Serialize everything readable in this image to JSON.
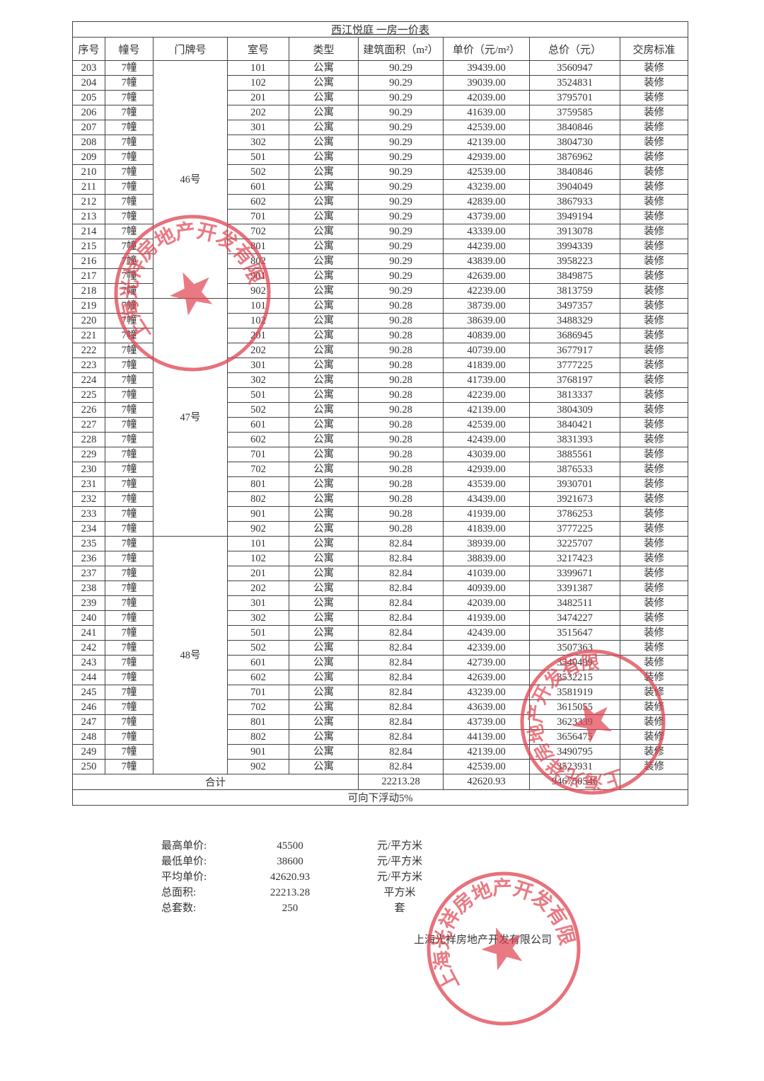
{
  "title": "西江悦庭 一房一价表",
  "columns": [
    "序号",
    "幢号",
    "门牌号",
    "室号",
    "类型",
    "建筑面积（m²）",
    "单价（元/m²）",
    "总价（元）",
    "交房标准"
  ],
  "door_groups": [
    {
      "label": "46号",
      "rows": 16
    },
    {
      "label": "47号",
      "rows": 16
    },
    {
      "label": "48号",
      "rows": 16
    }
  ],
  "rows": [
    [
      "203",
      "7幢",
      "101",
      "公寓",
      "90.29",
      "39439.00",
      "3560947",
      "装修"
    ],
    [
      "204",
      "7幢",
      "102",
      "公寓",
      "90.29",
      "39039.00",
      "3524831",
      "装修"
    ],
    [
      "205",
      "7幢",
      "201",
      "公寓",
      "90.29",
      "42039.00",
      "3795701",
      "装修"
    ],
    [
      "206",
      "7幢",
      "202",
      "公寓",
      "90.29",
      "41639.00",
      "3759585",
      "装修"
    ],
    [
      "207",
      "7幢",
      "301",
      "公寓",
      "90.29",
      "42539.00",
      "3840846",
      "装修"
    ],
    [
      "208",
      "7幢",
      "302",
      "公寓",
      "90.29",
      "42139.00",
      "3804730",
      "装修"
    ],
    [
      "209",
      "7幢",
      "501",
      "公寓",
      "90.29",
      "42939.00",
      "3876962",
      "装修"
    ],
    [
      "210",
      "7幢",
      "502",
      "公寓",
      "90.29",
      "42539.00",
      "3840846",
      "装修"
    ],
    [
      "211",
      "7幢",
      "601",
      "公寓",
      "90.29",
      "43239.00",
      "3904049",
      "装修"
    ],
    [
      "212",
      "7幢",
      "602",
      "公寓",
      "90.29",
      "42839.00",
      "3867933",
      "装修"
    ],
    [
      "213",
      "7幢",
      "701",
      "公寓",
      "90.29",
      "43739.00",
      "3949194",
      "装修"
    ],
    [
      "214",
      "7幢",
      "702",
      "公寓",
      "90.29",
      "43339.00",
      "3913078",
      "装修"
    ],
    [
      "215",
      "7幢",
      "801",
      "公寓",
      "90.29",
      "44239.00",
      "3994339",
      "装修"
    ],
    [
      "216",
      "7幢",
      "802",
      "公寓",
      "90.29",
      "43839.00",
      "3958223",
      "装修"
    ],
    [
      "217",
      "7幢",
      "901",
      "公寓",
      "90.29",
      "42639.00",
      "3849875",
      "装修"
    ],
    [
      "218",
      "7幢",
      "902",
      "公寓",
      "90.29",
      "42239.00",
      "3813759",
      "装修"
    ],
    [
      "219",
      "7幢",
      "101",
      "公寓",
      "90.28",
      "38739.00",
      "3497357",
      "装修"
    ],
    [
      "220",
      "7幢",
      "102",
      "公寓",
      "90.28",
      "38639.00",
      "3488329",
      "装修"
    ],
    [
      "221",
      "7幢",
      "201",
      "公寓",
      "90.28",
      "40839.00",
      "3686945",
      "装修"
    ],
    [
      "222",
      "7幢",
      "202",
      "公寓",
      "90.28",
      "40739.00",
      "3677917",
      "装修"
    ],
    [
      "223",
      "7幢",
      "301",
      "公寓",
      "90.28",
      "41839.00",
      "3777225",
      "装修"
    ],
    [
      "224",
      "7幢",
      "302",
      "公寓",
      "90.28",
      "41739.00",
      "3768197",
      "装修"
    ],
    [
      "225",
      "7幢",
      "501",
      "公寓",
      "90.28",
      "42239.00",
      "3813337",
      "装修"
    ],
    [
      "226",
      "7幢",
      "502",
      "公寓",
      "90.28",
      "42139.00",
      "3804309",
      "装修"
    ],
    [
      "227",
      "7幢",
      "601",
      "公寓",
      "90.28",
      "42539.00",
      "3840421",
      "装修"
    ],
    [
      "228",
      "7幢",
      "602",
      "公寓",
      "90.28",
      "42439.00",
      "3831393",
      "装修"
    ],
    [
      "229",
      "7幢",
      "701",
      "公寓",
      "90.28",
      "43039.00",
      "3885561",
      "装修"
    ],
    [
      "230",
      "7幢",
      "702",
      "公寓",
      "90.28",
      "42939.00",
      "3876533",
      "装修"
    ],
    [
      "231",
      "7幢",
      "801",
      "公寓",
      "90.28",
      "43539.00",
      "3930701",
      "装修"
    ],
    [
      "232",
      "7幢",
      "802",
      "公寓",
      "90.28",
      "43439.00",
      "3921673",
      "装修"
    ],
    [
      "233",
      "7幢",
      "901",
      "公寓",
      "90.28",
      "41939.00",
      "3786253",
      "装修"
    ],
    [
      "234",
      "7幢",
      "902",
      "公寓",
      "90.28",
      "41839.00",
      "3777225",
      "装修"
    ],
    [
      "235",
      "7幢",
      "101",
      "公寓",
      "82.84",
      "38939.00",
      "3225707",
      "装修"
    ],
    [
      "236",
      "7幢",
      "102",
      "公寓",
      "82.84",
      "38839.00",
      "3217423",
      "装修"
    ],
    [
      "237",
      "7幢",
      "201",
      "公寓",
      "82.84",
      "41039.00",
      "3399671",
      "装修"
    ],
    [
      "238",
      "7幢",
      "202",
      "公寓",
      "82.84",
      "40939.00",
      "3391387",
      "装修"
    ],
    [
      "239",
      "7幢",
      "301",
      "公寓",
      "82.84",
      "42039.00",
      "3482511",
      "装修"
    ],
    [
      "240",
      "7幢",
      "302",
      "公寓",
      "82.84",
      "41939.00",
      "3474227",
      "装修"
    ],
    [
      "241",
      "7幢",
      "501",
      "公寓",
      "82.84",
      "42439.00",
      "3515647",
      "装修"
    ],
    [
      "242",
      "7幢",
      "502",
      "公寓",
      "82.84",
      "42339.00",
      "3507363",
      "装修"
    ],
    [
      "243",
      "7幢",
      "601",
      "公寓",
      "82.84",
      "42739.00",
      "3540499",
      "装修"
    ],
    [
      "244",
      "7幢",
      "602",
      "公寓",
      "82.84",
      "42639.00",
      "3532215",
      "装修"
    ],
    [
      "245",
      "7幢",
      "701",
      "公寓",
      "82.84",
      "43239.00",
      "3581919",
      "装修"
    ],
    [
      "246",
      "7幢",
      "702",
      "公寓",
      "82.84",
      "43639.00",
      "3615055",
      "装修"
    ],
    [
      "247",
      "7幢",
      "801",
      "公寓",
      "82.84",
      "43739.00",
      "3623339",
      "装修"
    ],
    [
      "248",
      "7幢",
      "802",
      "公寓",
      "82.84",
      "44139.00",
      "3656475",
      "装修"
    ],
    [
      "249",
      "7幢",
      "901",
      "公寓",
      "82.84",
      "42139.00",
      "3490795",
      "装修"
    ],
    [
      "250",
      "7幢",
      "902",
      "公寓",
      "82.84",
      "42539.00",
      "3523931",
      "装修"
    ]
  ],
  "total": {
    "label": "合计",
    "area": "22213.28",
    "unit_price": "42620.93",
    "total_price": "946750546"
  },
  "note": "可向下浮动5%",
  "summary": [
    {
      "label": "最高单价:",
      "value": "45500",
      "unit": "元/平方米"
    },
    {
      "label": "最低单价:",
      "value": "38600",
      "unit": "元/平方米"
    },
    {
      "label": "平均单价:",
      "value": "42620.93",
      "unit": "元/平方米"
    },
    {
      "label": "总面积:",
      "value": "22213.28",
      "unit": "平方米"
    },
    {
      "label": "总套数:",
      "value": "250",
      "unit": "套"
    }
  ],
  "company": "上海光祥房地产开发有限公司",
  "stamp_color": "#e0424f"
}
